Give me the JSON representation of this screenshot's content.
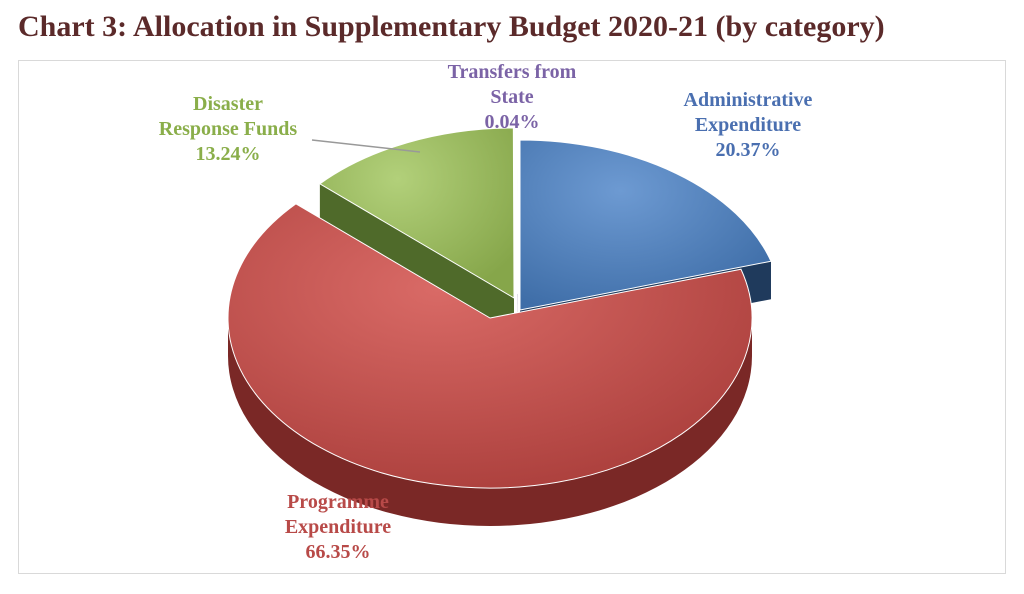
{
  "chart_data": {
    "type": "pie",
    "title": "Chart 3: Allocation in Supplementary Budget 2020-21 (by category)",
    "slices": [
      {
        "label_lines": [
          "Administrative",
          "Expenditure"
        ],
        "value_label": "20.37%",
        "value": 20.37,
        "color": "#4f81bd"
      },
      {
        "label_lines": [
          "Programme",
          "Expenditure"
        ],
        "value_label": "66.35%",
        "value": 66.35,
        "color": "#c0504d"
      },
      {
        "label_lines": [
          "Disaster",
          "Response Funds"
        ],
        "value_label": "13.24%",
        "value": 13.24,
        "color": "#9bbb59"
      },
      {
        "label_lines": [
          "Transfers from",
          "State"
        ],
        "value_label": "0.04%",
        "value": 0.04,
        "color": "#8064a2"
      }
    ]
  }
}
